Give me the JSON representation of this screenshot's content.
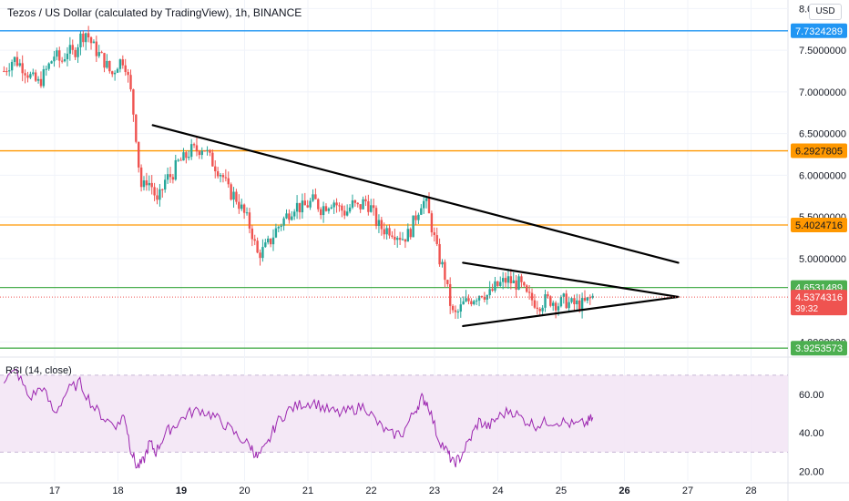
{
  "header": {
    "title": "Tezos / US Dollar (calculated by TradingView), 1h, BINANCE",
    "currency": "USD",
    "rsi_title": "RSI (14, close)"
  },
  "chart_data": [
    {
      "type": "candlestick",
      "title": "Tezos / US Dollar (calculated by TradingView), 1h, BINANCE",
      "ylim": [
        3.84,
        8.08
      ],
      "y_ticks": [
        {
          "value": 8.0,
          "label": "8.0"
        },
        {
          "value": 7.5,
          "label": "7.5000000"
        },
        {
          "value": 7.0,
          "label": "7.0000000"
        },
        {
          "value": 6.5,
          "label": "6.5000000"
        },
        {
          "value": 6.0,
          "label": "6.0000000"
        },
        {
          "value": 5.5,
          "label": "5.5000000"
        },
        {
          "value": 5.0,
          "label": "5.0000000"
        },
        {
          "value": 4.0,
          "label": "4.0000000"
        }
      ],
      "x_ticks": [
        {
          "value": 17,
          "label": "17",
          "bold": false
        },
        {
          "value": 18,
          "label": "18",
          "bold": false
        },
        {
          "value": 19,
          "label": "19",
          "bold": true
        },
        {
          "value": 20,
          "label": "20",
          "bold": false
        },
        {
          "value": 21,
          "label": "21",
          "bold": false
        },
        {
          "value": 22,
          "label": "22",
          "bold": false
        },
        {
          "value": 23,
          "label": "23",
          "bold": false
        },
        {
          "value": 24,
          "label": "24",
          "bold": false
        },
        {
          "value": 25,
          "label": "25",
          "bold": false
        },
        {
          "value": 26,
          "label": "26",
          "bold": true
        },
        {
          "value": 27,
          "label": "27",
          "bold": false
        },
        {
          "value": 28,
          "label": "28",
          "bold": false
        }
      ],
      "price_path": [
        [
          16.2,
          7.25
        ],
        [
          16.35,
          7.4
        ],
        [
          16.5,
          7.3
        ],
        [
          16.65,
          7.15
        ],
        [
          16.75,
          7.1
        ],
        [
          16.9,
          7.3
        ],
        [
          17.0,
          7.45
        ],
        [
          17.1,
          7.35
        ],
        [
          17.2,
          7.5
        ],
        [
          17.3,
          7.45
        ],
        [
          17.4,
          7.65
        ],
        [
          17.5,
          7.72
        ],
        [
          17.6,
          7.55
        ],
        [
          17.7,
          7.45
        ],
        [
          17.8,
          7.35
        ],
        [
          17.9,
          7.2
        ],
        [
          18.0,
          7.35
        ],
        [
          18.1,
          7.4
        ],
        [
          18.2,
          7.0
        ],
        [
          18.27,
          6.6
        ],
        [
          18.33,
          6.1
        ],
        [
          18.38,
          5.8
        ],
        [
          18.45,
          5.95
        ],
        [
          18.55,
          5.85
        ],
        [
          18.62,
          5.65
        ],
        [
          18.75,
          5.95
        ],
        [
          18.85,
          6.0
        ],
        [
          18.95,
          6.15
        ],
        [
          19.05,
          6.2
        ],
        [
          19.15,
          6.3
        ],
        [
          19.25,
          6.3
        ],
        [
          19.35,
          6.35
        ],
        [
          19.45,
          6.2
        ],
        [
          19.55,
          6.1
        ],
        [
          19.65,
          6.0
        ],
        [
          19.75,
          5.8
        ],
        [
          19.85,
          5.75
        ],
        [
          19.95,
          5.6
        ],
        [
          20.05,
          5.45
        ],
        [
          20.12,
          5.3
        ],
        [
          20.2,
          5.05
        ],
        [
          20.3,
          5.1
        ],
        [
          20.4,
          5.2
        ],
        [
          20.5,
          5.35
        ],
        [
          20.6,
          5.45
        ],
        [
          20.7,
          5.55
        ],
        [
          20.8,
          5.65
        ],
        [
          20.9,
          5.6
        ],
        [
          21.0,
          5.65
        ],
        [
          21.1,
          5.7
        ],
        [
          21.2,
          5.6
        ],
        [
          21.3,
          5.65
        ],
        [
          21.4,
          5.7
        ],
        [
          21.5,
          5.6
        ],
        [
          21.6,
          5.55
        ],
        [
          21.7,
          5.65
        ],
        [
          21.8,
          5.6
        ],
        [
          21.9,
          5.7
        ],
        [
          22.0,
          5.6
        ],
        [
          22.1,
          5.4
        ],
        [
          22.2,
          5.35
        ],
        [
          22.3,
          5.35
        ],
        [
          22.4,
          5.3
        ],
        [
          22.5,
          5.25
        ],
        [
          22.6,
          5.3
        ],
        [
          22.7,
          5.5
        ],
        [
          22.8,
          5.7
        ],
        [
          22.87,
          5.65
        ],
        [
          22.95,
          5.4
        ],
        [
          23.05,
          5.05
        ],
        [
          23.15,
          4.85
        ],
        [
          23.22,
          4.55
        ],
        [
          23.3,
          4.3
        ],
        [
          23.37,
          4.35
        ],
        [
          23.45,
          4.45
        ],
        [
          23.55,
          4.5
        ],
        [
          23.65,
          4.55
        ],
        [
          23.75,
          4.6
        ],
        [
          23.85,
          4.55
        ],
        [
          23.95,
          4.65
        ],
        [
          24.05,
          4.7
        ],
        [
          24.15,
          4.75
        ],
        [
          24.25,
          4.7
        ],
        [
          24.35,
          4.7
        ],
        [
          24.45,
          4.55
        ],
        [
          24.55,
          4.5
        ],
        [
          24.65,
          4.45
        ],
        [
          24.75,
          4.5
        ],
        [
          24.85,
          4.5
        ],
        [
          24.95,
          4.45
        ],
        [
          25.05,
          4.5
        ],
        [
          25.15,
          4.45
        ],
        [
          25.25,
          4.45
        ],
        [
          25.35,
          4.45
        ],
        [
          25.5,
          4.54
        ]
      ],
      "levels": [
        {
          "value": 7.7324289,
          "label": "7.7324289",
          "color": "#2196f3"
        },
        {
          "value": 6.2927805,
          "label": "6.2927805",
          "color": "#ff9800"
        },
        {
          "value": 5.4024716,
          "label": "5.4024716",
          "color": "#ff9800"
        },
        {
          "value": 4.6531489,
          "label": "4.6531489",
          "color": "#4caf50"
        },
        {
          "value": 3.9253573,
          "label": "3.9253573",
          "color": "#4caf50"
        }
      ],
      "last_price": {
        "value": 4.5374316,
        "label": "4.5374316",
        "countdown": "39:32",
        "color": "#ef5350"
      },
      "trendlines": [
        {
          "x1": 18.55,
          "y1": 6.6,
          "x2": 26.85,
          "y2": 4.95
        },
        {
          "x1": 23.45,
          "y1": 4.95,
          "x2": 26.85,
          "y2": 4.54
        },
        {
          "x1": 23.45,
          "y1": 4.19,
          "x2": 26.85,
          "y2": 4.54
        }
      ],
      "colors": {
        "up": "#26a69a",
        "down": "#ef5350",
        "line": "#000000",
        "grid": "#f0f3fa",
        "text": "#131722"
      }
    },
    {
      "type": "line",
      "title": "RSI (14, close)",
      "ylim": [
        15,
        78
      ],
      "band": [
        30,
        70
      ],
      "y_ticks": [
        {
          "value": 60,
          "label": "60.00"
        },
        {
          "value": 40,
          "label": "40.00"
        },
        {
          "value": 20,
          "label": "20.00"
        }
      ],
      "series": [
        {
          "color": "#9c27b0",
          "band_color": "#f3e5f5",
          "points": [
            [
              16.2,
              68
            ],
            [
              16.4,
              72
            ],
            [
              16.6,
              58
            ],
            [
              16.8,
              64
            ],
            [
              17.0,
              50
            ],
            [
              17.2,
              62
            ],
            [
              17.4,
              66
            ],
            [
              17.6,
              54
            ],
            [
              17.8,
              47
            ],
            [
              18.0,
              44
            ],
            [
              18.1,
              50
            ],
            [
              18.2,
              32
            ],
            [
              18.3,
              22
            ],
            [
              18.4,
              25
            ],
            [
              18.5,
              35
            ],
            [
              18.6,
              30
            ],
            [
              18.75,
              40
            ],
            [
              18.9,
              44
            ],
            [
              19.1,
              50
            ],
            [
              19.3,
              52
            ],
            [
              19.5,
              49
            ],
            [
              19.7,
              44
            ],
            [
              19.9,
              38
            ],
            [
              20.1,
              33
            ],
            [
              20.2,
              27
            ],
            [
              20.35,
              33
            ],
            [
              20.5,
              45
            ],
            [
              20.7,
              52
            ],
            [
              20.9,
              55
            ],
            [
              21.1,
              56
            ],
            [
              21.3,
              52
            ],
            [
              21.5,
              50
            ],
            [
              21.7,
              52
            ],
            [
              21.9,
              54
            ],
            [
              22.1,
              45
            ],
            [
              22.3,
              39
            ],
            [
              22.5,
              40
            ],
            [
              22.7,
              52
            ],
            [
              22.8,
              58
            ],
            [
              22.9,
              55
            ],
            [
              23.05,
              38
            ],
            [
              23.2,
              30
            ],
            [
              23.3,
              24
            ],
            [
              23.4,
              27
            ],
            [
              23.55,
              36
            ],
            [
              23.7,
              46
            ],
            [
              23.85,
              43
            ],
            [
              24.0,
              48
            ],
            [
              24.2,
              52
            ],
            [
              24.4,
              47
            ],
            [
              24.6,
              44
            ],
            [
              24.8,
              46
            ],
            [
              25.0,
              46
            ],
            [
              25.2,
              44
            ],
            [
              25.4,
              45
            ],
            [
              25.5,
              48
            ]
          ]
        }
      ]
    }
  ]
}
